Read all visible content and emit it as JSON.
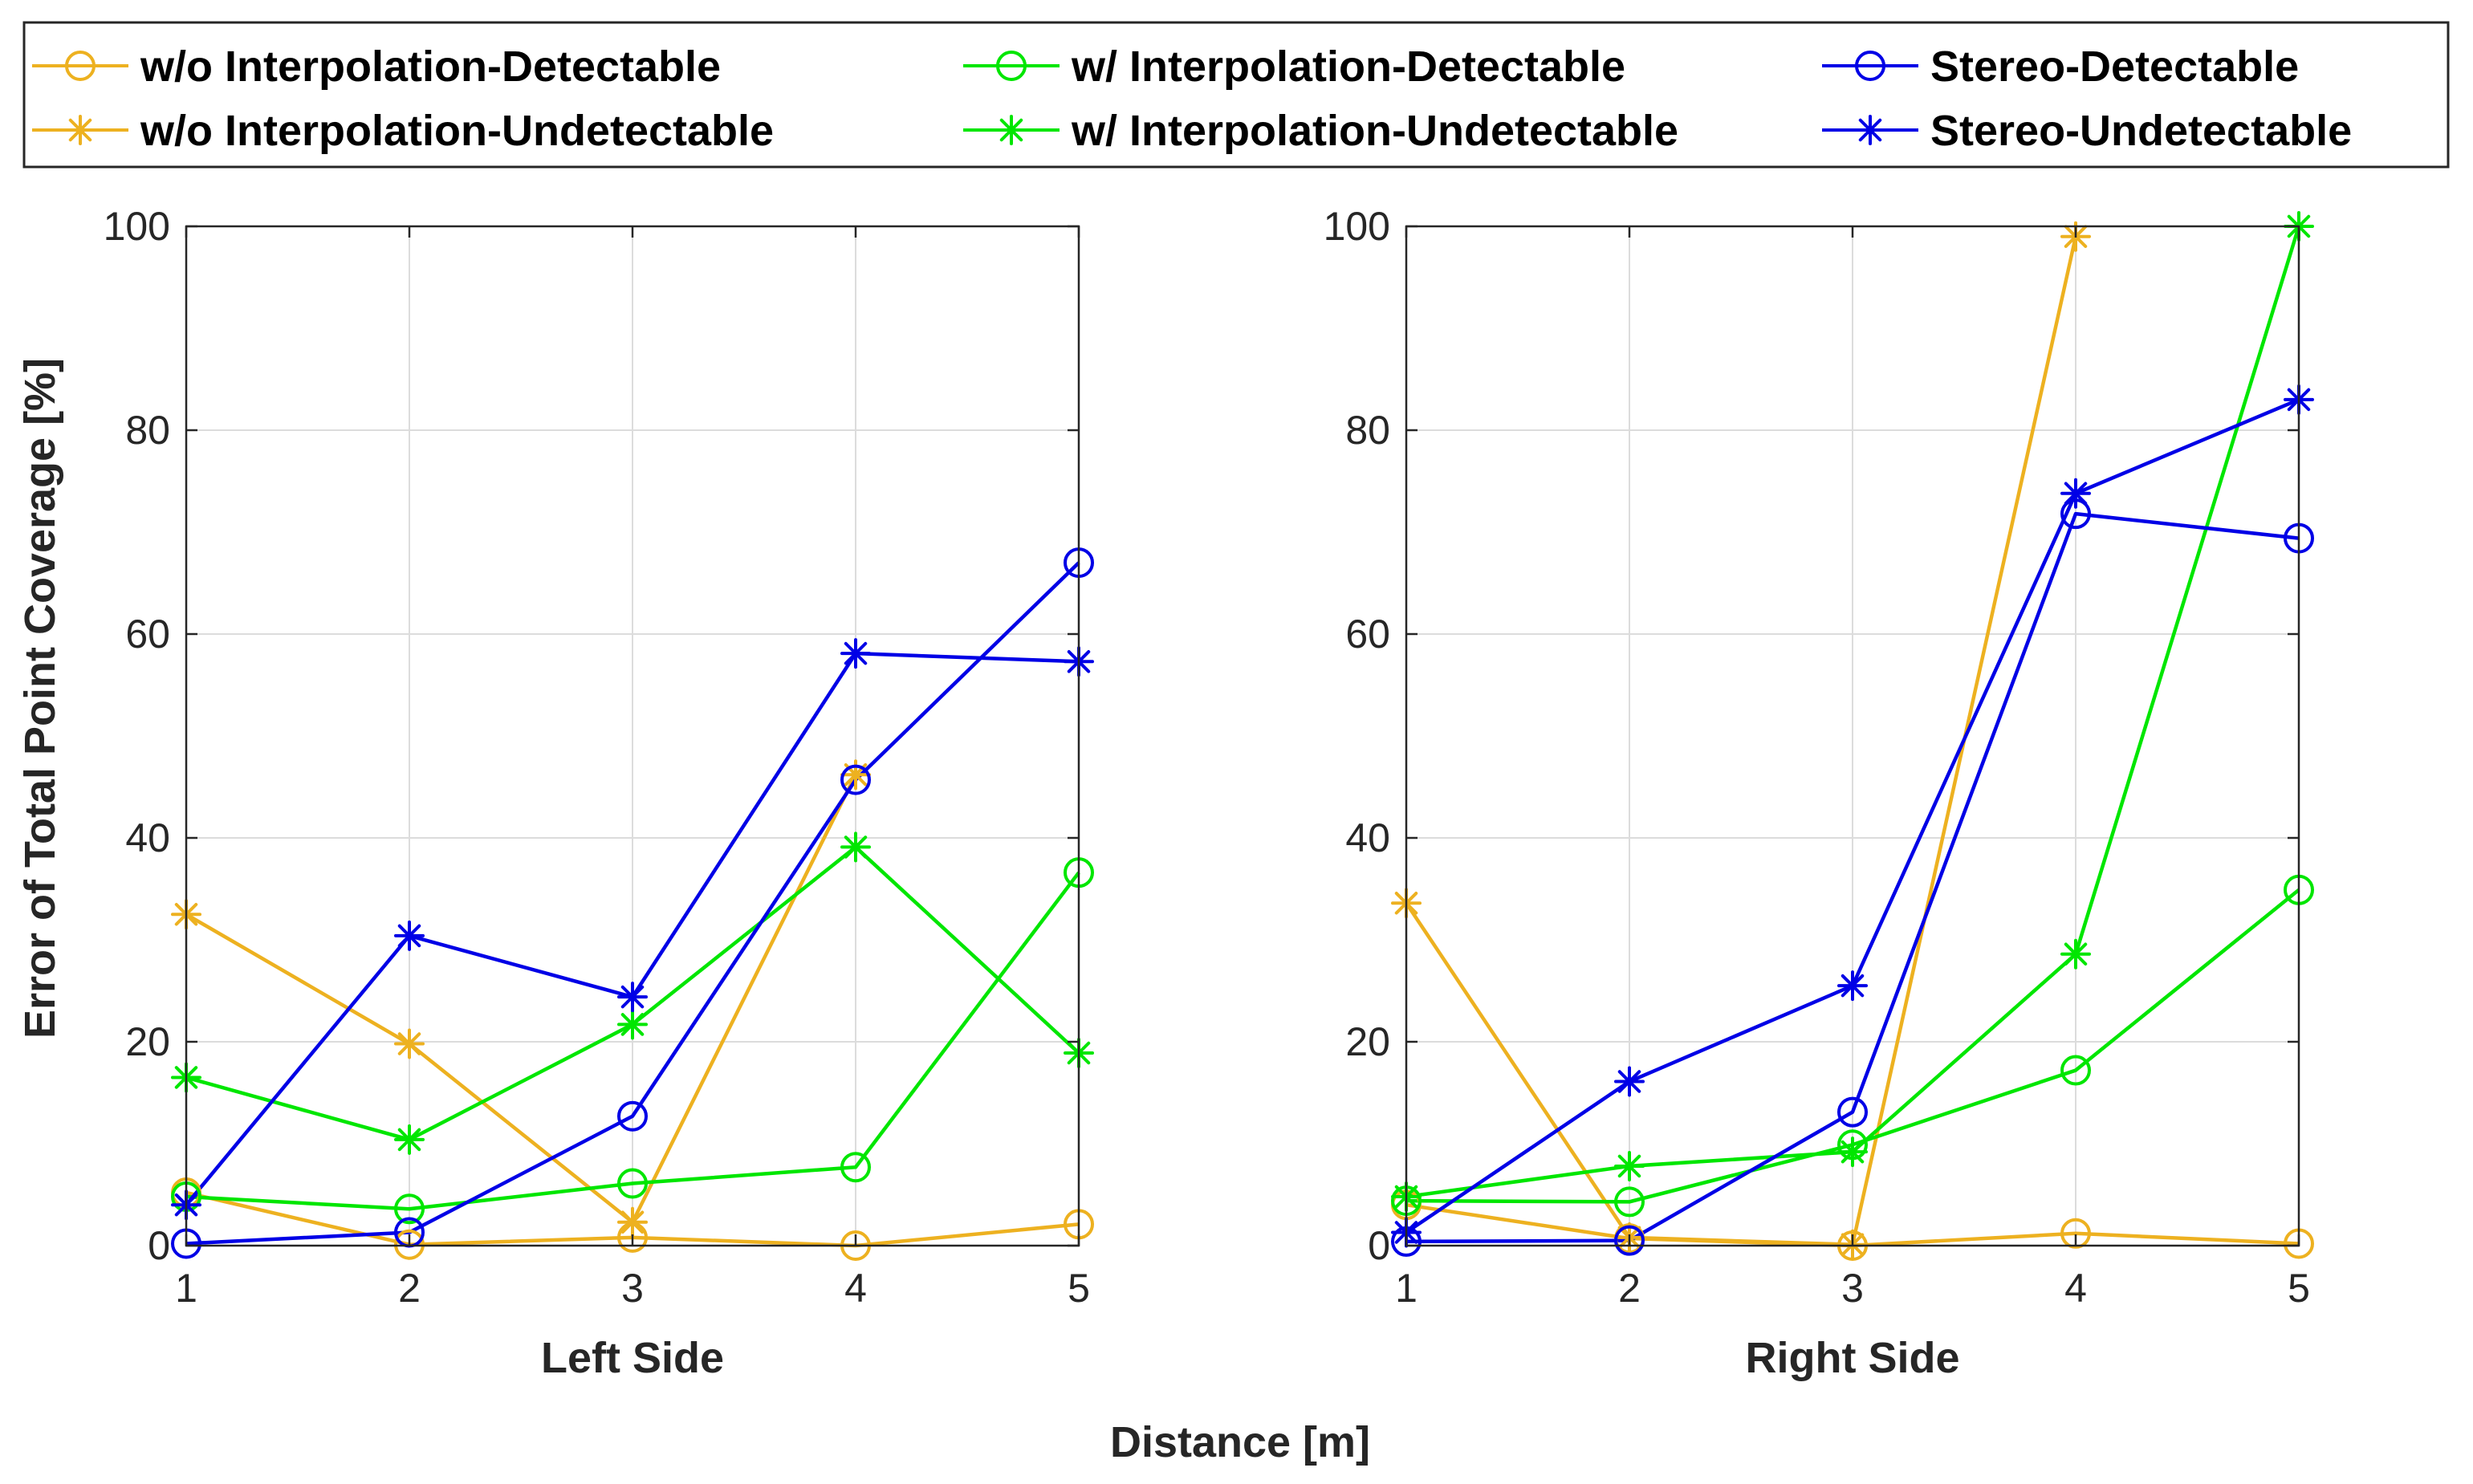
{
  "chart_data": {
    "type": "line",
    "shared": {
      "ylabel": "Error of Total Point Coverage [%]",
      "xlabel": "Distance [m]",
      "x": [
        1,
        2,
        3,
        4,
        5
      ],
      "ylim": [
        0,
        100
      ],
      "yticks": [
        0,
        20,
        40,
        60,
        80,
        100
      ],
      "xticks": [
        1,
        2,
        3,
        4,
        5
      ],
      "grid": true,
      "legend_position": "top"
    },
    "legend": [
      {
        "key": "woD",
        "label": "w/o Interpolation-Detectable",
        "color": "#EDB120",
        "marker": "circle"
      },
      {
        "key": "wD",
        "label": "w/ Interpolation-Detectable",
        "color": "#00E600",
        "marker": "circle"
      },
      {
        "key": "sD",
        "label": "Stereo-Detectable",
        "color": "#0000E6",
        "marker": "circle"
      },
      {
        "key": "woU",
        "label": "w/o Interpolation-Undetectable",
        "color": "#EDB120",
        "marker": "star"
      },
      {
        "key": "wU",
        "label": "w/ Interpolation-Undetectable",
        "color": "#00E600",
        "marker": "star"
      },
      {
        "key": "sU",
        "label": "Stereo-Undetectable",
        "color": "#0000E6",
        "marker": "star"
      }
    ],
    "panels": [
      {
        "title": "Left Side",
        "series": [
          {
            "key": "woD",
            "values": [
              5.2,
              0.1,
              0.8,
              0.0,
              2.1
            ]
          },
          {
            "key": "woU",
            "values": [
              32.5,
              19.8,
              2.3,
              46.2,
              null
            ]
          },
          {
            "key": "wD",
            "values": [
              4.8,
              3.6,
              6.1,
              7.7,
              36.6
            ]
          },
          {
            "key": "wU",
            "values": [
              16.5,
              10.4,
              21.7,
              39.1,
              18.9
            ]
          },
          {
            "key": "sD",
            "values": [
              0.2,
              1.3,
              12.7,
              45.7,
              67.0
            ]
          },
          {
            "key": "sU",
            "values": [
              4.0,
              30.4,
              24.4,
              58.1,
              57.3
            ]
          }
        ]
      },
      {
        "title": "Right Side",
        "series": [
          {
            "key": "woD",
            "values": [
              4.0,
              0.7,
              0.0,
              1.2,
              0.2
            ]
          },
          {
            "key": "woU",
            "values": [
              33.6,
              0.8,
              0.1,
              99.0,
              null
            ]
          },
          {
            "key": "wD",
            "values": [
              4.4,
              4.3,
              9.9,
              17.2,
              34.9
            ]
          },
          {
            "key": "wU",
            "values": [
              4.8,
              7.8,
              9.2,
              28.6,
              100.0
            ]
          },
          {
            "key": "sD",
            "values": [
              0.4,
              0.5,
              13.1,
              71.8,
              69.4
            ]
          },
          {
            "key": "sU",
            "values": [
              1.3,
              16.1,
              25.5,
              73.8,
              83.0
            ]
          }
        ]
      }
    ]
  }
}
